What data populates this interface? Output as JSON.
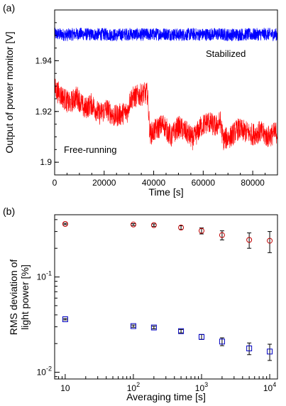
{
  "chart_data": [
    {
      "panel_label": "(a)",
      "type": "line",
      "xlabel": "Time [s]",
      "ylabel": "Output of power monitor [V]",
      "xlim": [
        0,
        90000
      ],
      "ylim": [
        1.895,
        1.96
      ],
      "xticks": [
        0,
        20000,
        40000,
        60000,
        80000
      ],
      "xtick_labels": [
        "0",
        "20000",
        "40000",
        "60000",
        "80000"
      ],
      "yticks": [
        1.9,
        1.92,
        1.94
      ],
      "ytick_labels": [
        "1.9",
        "1.92",
        "1.94"
      ],
      "grid": false,
      "annotations": [
        "Stabilized",
        "Free-running"
      ],
      "series": [
        {
          "label": "Stabilized",
          "color": "#0000ff",
          "x": [
            0,
            5000,
            10000,
            15000,
            20000,
            25000,
            30000,
            35000,
            40000,
            45000,
            50000,
            55000,
            60000,
            65000,
            70000,
            75000,
            80000,
            85000,
            90000
          ],
          "y": [
            1.9505,
            1.9502,
            1.9506,
            1.9503,
            1.9504,
            1.9501,
            1.9505,
            1.9503,
            1.9504,
            1.9506,
            1.9502,
            1.9504,
            1.9503,
            1.9505,
            1.9502,
            1.9504,
            1.9503,
            1.9505,
            1.9503
          ],
          "noise_amplitude": 0.0025
        },
        {
          "label": "Free-running",
          "color": "#ff0000",
          "x": [
            0,
            3000,
            6000,
            9000,
            12000,
            15000,
            18000,
            21000,
            24000,
            27000,
            29500,
            30500,
            33000,
            36000,
            37500,
            38500,
            41000,
            44000,
            47000,
            50000,
            53000,
            56000,
            59000,
            62000,
            65000,
            67000,
            68000,
            71000,
            74000,
            77000,
            80000,
            83000,
            86000,
            90000
          ],
          "y": [
            1.929,
            1.926,
            1.923,
            1.926,
            1.921,
            1.923,
            1.919,
            1.921,
            1.918,
            1.919,
            1.92,
            1.925,
            1.926,
            1.927,
            1.927,
            1.911,
            1.913,
            1.915,
            1.91,
            1.914,
            1.912,
            1.909,
            1.914,
            1.916,
            1.914,
            1.916,
            1.909,
            1.91,
            1.913,
            1.912,
            1.911,
            1.912,
            1.91,
            1.912
          ],
          "noise_amplitude": 0.0045
        }
      ]
    },
    {
      "panel_label": "(b)",
      "type": "scatter",
      "xlabel": "Averaging time [s]",
      "ylabel": [
        "RMS deviation of",
        "light power [%]"
      ],
      "xscale": "log",
      "yscale": "log",
      "xlim": [
        7,
        13000
      ],
      "ylim": [
        0.0085,
        0.45
      ],
      "xticks": [
        10,
        100,
        1000,
        10000
      ],
      "xtick_labels": [
        "10",
        "10^2",
        "10^3",
        "10^4"
      ],
      "yticks": [
        0.01,
        0.1
      ],
      "ytick_labels": [
        "10^-2",
        "10^-1"
      ],
      "grid": false,
      "series": [
        {
          "marker": "circle",
          "color": "#c00000",
          "x": [
            10,
            100,
            200,
            500,
            1000,
            2000,
            5000,
            10000
          ],
          "y": [
            0.36,
            0.355,
            0.35,
            0.33,
            0.305,
            0.275,
            0.245,
            0.24
          ],
          "yerr": [
            0.006,
            0.008,
            0.01,
            0.015,
            0.022,
            0.03,
            0.045,
            0.06
          ]
        },
        {
          "marker": "square",
          "color": "#0000c0",
          "x": [
            10,
            100,
            200,
            500,
            1000,
            2000,
            5000,
            10000
          ],
          "y": [
            0.036,
            0.0305,
            0.0295,
            0.027,
            0.0235,
            0.021,
            0.0178,
            0.0165
          ],
          "yerr": [
            0.0006,
            0.0008,
            0.0009,
            0.0011,
            0.0014,
            0.002,
            0.0025,
            0.0032
          ]
        }
      ]
    }
  ]
}
